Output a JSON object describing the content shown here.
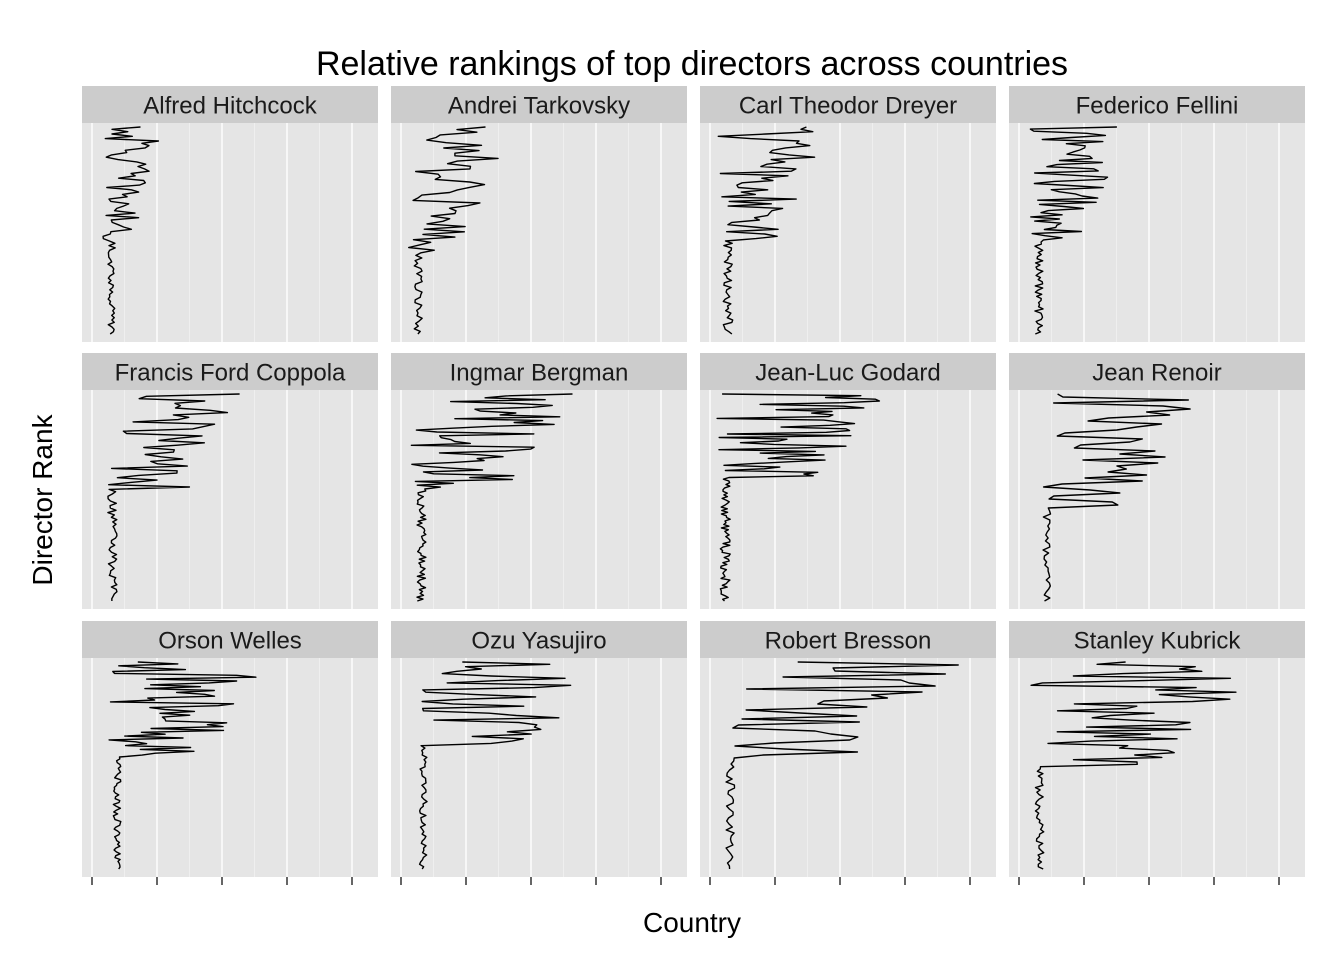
{
  "chart_data": {
    "type": "line",
    "title": "Relative rankings of top directors across countries",
    "xlabel": "Country",
    "ylabel": "Director Rank",
    "x_tick_labels": [],
    "y_tick_labels": [],
    "grid": true,
    "legend": "none",
    "colors": {
      "panel_bg": "#e5e5e5",
      "strip_bg": "#cccccc",
      "grid": "#ffffff",
      "line": "#000000"
    },
    "facets": [
      "Alfred Hitchcock",
      "Andrei Tarkovsky",
      "Carl Theodor Dreyer",
      "Federico Fellini",
      "Francis Ford Coppola",
      "Ingmar Bergman",
      "Jean-Luc Godard",
      "Jean Renoir",
      "Orson Welles",
      "Ozu Yasujiro",
      "Robert Bresson",
      "Stanley Kubrick"
    ]
  }
}
